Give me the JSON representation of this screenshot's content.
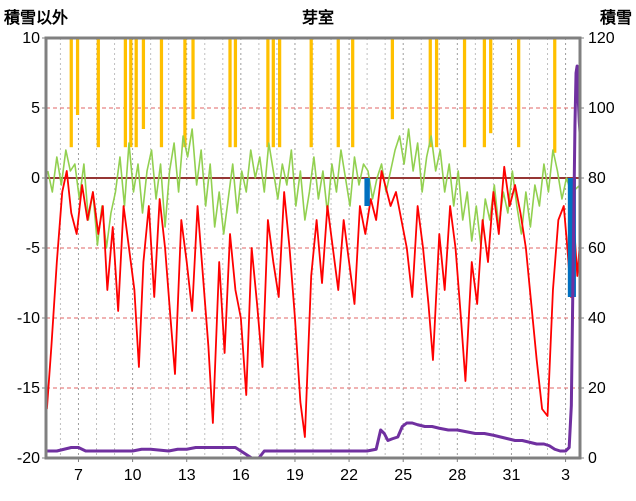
{
  "labels": {
    "left_axis_title": "積雪以外",
    "chart_title": "芽室",
    "right_axis_title": "積雪"
  },
  "chart_data": {
    "type": "line",
    "title": "芽室",
    "x_axis": {
      "domain": [
        5.2,
        34.8
      ],
      "gridline_step": 1,
      "ticks": [
        {
          "x": 7,
          "label": "7"
        },
        {
          "x": 10,
          "label": "10"
        },
        {
          "x": 13,
          "label": "13"
        },
        {
          "x": 16,
          "label": "16"
        },
        {
          "x": 19,
          "label": "19"
        },
        {
          "x": 22,
          "label": "22"
        },
        {
          "x": 25,
          "label": "25"
        },
        {
          "x": 28,
          "label": "28"
        },
        {
          "x": 31,
          "label": "31"
        },
        {
          "x": 34,
          "label": "3"
        }
      ]
    },
    "left_axis": {
      "title": "積雪以外",
      "range": [
        -20,
        10
      ],
      "ticks": [
        10,
        5,
        0,
        -5,
        -10,
        -15,
        -20
      ]
    },
    "right_axis": {
      "title": "積雪",
      "range": [
        0,
        120
      ],
      "ticks": [
        120,
        100,
        80,
        60,
        40,
        20,
        0
      ]
    },
    "colors": {
      "red": "#FF0000",
      "green": "#92D050",
      "orange": "#FFC000",
      "blue": "#0070C0",
      "purple": "#7030A0",
      "zero_line": "#963634",
      "h_grid": "#E06666",
      "v_grid": "#BFBFBF",
      "frame": "#808080"
    },
    "series": {
      "line_red": {
        "axis": "left",
        "color": "#FF0000",
        "points": [
          [
            5.25,
            -16.5
          ],
          [
            5.5,
            -12
          ],
          [
            5.8,
            -6
          ],
          [
            6.1,
            -1
          ],
          [
            6.35,
            0.5
          ],
          [
            6.6,
            -2.5
          ],
          [
            6.9,
            -4
          ],
          [
            7.2,
            -0.5
          ],
          [
            7.5,
            -3
          ],
          [
            7.8,
            -1
          ],
          [
            8.1,
            -4
          ],
          [
            8.35,
            -2
          ],
          [
            8.6,
            -8
          ],
          [
            8.9,
            -3.5
          ],
          [
            9.2,
            -9.5
          ],
          [
            9.5,
            -2
          ],
          [
            9.8,
            -5
          ],
          [
            10.1,
            -8
          ],
          [
            10.35,
            -13.5
          ],
          [
            10.6,
            -6
          ],
          [
            10.9,
            -2
          ],
          [
            11.2,
            -8.5
          ],
          [
            11.5,
            -1.5
          ],
          [
            11.8,
            -5
          ],
          [
            12.1,
            -10
          ],
          [
            12.35,
            -14
          ],
          [
            12.7,
            -3
          ],
          [
            13,
            -6
          ],
          [
            13.3,
            -9.5
          ],
          [
            13.6,
            -2
          ],
          [
            13.9,
            -7
          ],
          [
            14.2,
            -12
          ],
          [
            14.45,
            -17.5
          ],
          [
            14.8,
            -6
          ],
          [
            15.1,
            -12.5
          ],
          [
            15.4,
            -4
          ],
          [
            15.7,
            -8
          ],
          [
            16,
            -10
          ],
          [
            16.3,
            -15.5
          ],
          [
            16.6,
            -5
          ],
          [
            16.9,
            -9
          ],
          [
            17.2,
            -13.5
          ],
          [
            17.5,
            -3
          ],
          [
            17.8,
            -6
          ],
          [
            18.1,
            -8.5
          ],
          [
            18.4,
            -1
          ],
          [
            18.7,
            -5
          ],
          [
            19,
            -10
          ],
          [
            19.3,
            -16
          ],
          [
            19.55,
            -18.5
          ],
          [
            19.9,
            -7
          ],
          [
            20.2,
            -3
          ],
          [
            20.5,
            -7.5
          ],
          [
            20.8,
            -2
          ],
          [
            21.1,
            -5
          ],
          [
            21.4,
            -8
          ],
          [
            21.7,
            -3
          ],
          [
            22,
            -6
          ],
          [
            22.3,
            -9
          ],
          [
            22.6,
            -2
          ],
          [
            22.9,
            -4
          ],
          [
            23.2,
            -1.5
          ],
          [
            23.5,
            -3
          ],
          [
            23.8,
            0.5
          ],
          [
            24,
            -0.5
          ],
          [
            24.3,
            -2
          ],
          [
            24.6,
            -1
          ],
          [
            24.9,
            -3
          ],
          [
            25.2,
            -5
          ],
          [
            25.5,
            -8.5
          ],
          [
            25.8,
            -2
          ],
          [
            26.1,
            -5
          ],
          [
            26.4,
            -9
          ],
          [
            26.65,
            -13
          ],
          [
            27,
            -4
          ],
          [
            27.3,
            -8
          ],
          [
            27.6,
            -2
          ],
          [
            27.9,
            -5
          ],
          [
            28.2,
            -10
          ],
          [
            28.45,
            -14.5
          ],
          [
            28.8,
            -6
          ],
          [
            29.1,
            -9
          ],
          [
            29.4,
            -3
          ],
          [
            29.7,
            -6
          ],
          [
            30,
            -1
          ],
          [
            30.3,
            -4
          ],
          [
            30.6,
            0.8
          ],
          [
            30.9,
            -2
          ],
          [
            31.2,
            -0.5
          ],
          [
            31.5,
            -2.5
          ],
          [
            31.8,
            -5
          ],
          [
            32.1,
            -9
          ],
          [
            32.4,
            -13
          ],
          [
            32.7,
            -16.5
          ],
          [
            33,
            -17
          ],
          [
            33.3,
            -8
          ],
          [
            33.6,
            -3
          ],
          [
            33.9,
            -2
          ],
          [
            34.1,
            -5
          ],
          [
            34.3,
            -8.5
          ],
          [
            34.5,
            -4
          ],
          [
            34.65,
            -7
          ],
          [
            34.8,
            -4.5
          ]
        ]
      },
      "line_green": {
        "axis": "left",
        "color": "#92D050",
        "x0": 5.3,
        "dx": 0.25,
        "values": [
          0.5,
          -1,
          1.5,
          -0.5,
          2,
          0.5,
          1,
          -1.5,
          1,
          -3,
          -1,
          -4.8,
          -2,
          -5,
          -2.5,
          -1,
          1.5,
          -2,
          2.5,
          -1,
          1,
          -2.5,
          0.5,
          2,
          -1.5,
          1,
          -3.5,
          0.5,
          2.5,
          -1,
          3,
          1.5,
          3.5,
          -0.5,
          2,
          -2,
          1,
          -3.5,
          -1,
          -4,
          -1.5,
          1,
          -2.5,
          0.5,
          -1,
          2,
          0,
          1.5,
          -1,
          2.5,
          0.5,
          -1.5,
          1,
          -0.5,
          2,
          -2,
          0.5,
          -3,
          -1,
          1.5,
          -1.5,
          0.5,
          -2.5,
          1,
          -1,
          2,
          0,
          -2,
          1.5,
          -0.5,
          1,
          0.5,
          -1.5,
          0,
          1,
          -1,
          0.5,
          2,
          3,
          1,
          3.5,
          0.5,
          2.5,
          -1,
          1.5,
          3,
          0.5,
          2,
          -1,
          1,
          -2,
          0.5,
          -3,
          -1,
          -4.5,
          -2,
          -4.8,
          -1.5,
          -3,
          -0.5,
          -3.5,
          -1,
          -2.5,
          0.5,
          -2,
          -4,
          -1,
          -3.5,
          -0.5,
          -2,
          1,
          -1,
          2,
          0.5,
          -1.5,
          0,
          -1,
          -0.8,
          -0.5
        ]
      },
      "bars_orange_from_top": {
        "axis": "left",
        "color": "#FFC000",
        "top": 10,
        "width": 0.18,
        "bars": [
          {
            "x": 6.6,
            "bottom": 2.2
          },
          {
            "x": 6.95,
            "bottom": 4.5
          },
          {
            "x": 8.1,
            "bottom": 2.2
          },
          {
            "x": 9.6,
            "bottom": 2.2
          },
          {
            "x": 9.9,
            "bottom": 2.2
          },
          {
            "x": 10.2,
            "bottom": 2.2
          },
          {
            "x": 10.6,
            "bottom": 3.5
          },
          {
            "x": 11.6,
            "bottom": 2.2
          },
          {
            "x": 12.9,
            "bottom": 2.2
          },
          {
            "x": 13.35,
            "bottom": 4.2
          },
          {
            "x": 15.4,
            "bottom": 2.2
          },
          {
            "x": 15.7,
            "bottom": 2.2
          },
          {
            "x": 17.5,
            "bottom": 2.2
          },
          {
            "x": 17.8,
            "bottom": 2.2
          },
          {
            "x": 18.15,
            "bottom": 2.2
          },
          {
            "x": 19.9,
            "bottom": 2.2
          },
          {
            "x": 21.4,
            "bottom": 2.2
          },
          {
            "x": 22.2,
            "bottom": 2.2
          },
          {
            "x": 24.4,
            "bottom": 4.2
          },
          {
            "x": 26.5,
            "bottom": 2.2
          },
          {
            "x": 26.85,
            "bottom": 2.2
          },
          {
            "x": 28.4,
            "bottom": 2.2
          },
          {
            "x": 29.5,
            "bottom": 2.2
          },
          {
            "x": 29.85,
            "bottom": 3.2
          },
          {
            "x": 31.4,
            "bottom": 2.2
          },
          {
            "x": 33.4,
            "bottom": 1.8
          }
        ]
      },
      "bars_blue_below_zero": {
        "axis": "left",
        "color": "#0070C0",
        "bars": [
          {
            "x": 23.0,
            "width": 0.3,
            "from": 0,
            "to": -2
          },
          {
            "x": 34.35,
            "width": 0.45,
            "from": 0,
            "to": -8.5
          }
        ]
      },
      "line_purple": {
        "axis": "right",
        "color": "#7030A0",
        "points": [
          [
            5.25,
            2
          ],
          [
            5.8,
            2
          ],
          [
            6.2,
            2.5
          ],
          [
            6.6,
            3
          ],
          [
            7,
            3
          ],
          [
            7.4,
            2
          ],
          [
            8,
            2
          ],
          [
            9,
            2
          ],
          [
            10,
            2
          ],
          [
            10.5,
            2.5
          ],
          [
            11,
            2.5
          ],
          [
            12,
            2
          ],
          [
            12.5,
            2.5
          ],
          [
            13,
            2.5
          ],
          [
            13.5,
            3
          ],
          [
            14,
            3
          ],
          [
            15,
            3
          ],
          [
            15.7,
            3
          ],
          [
            16,
            2
          ],
          [
            16.3,
            1
          ],
          [
            16.6,
            0
          ],
          [
            17,
            0
          ],
          [
            17.3,
            2
          ],
          [
            18,
            2
          ],
          [
            19,
            2
          ],
          [
            20,
            2
          ],
          [
            21,
            2
          ],
          [
            22,
            2
          ],
          [
            23,
            2
          ],
          [
            23.5,
            2.5
          ],
          [
            23.75,
            8
          ],
          [
            23.95,
            7
          ],
          [
            24.15,
            5
          ],
          [
            24.4,
            5.5
          ],
          [
            24.7,
            6
          ],
          [
            24.95,
            9
          ],
          [
            25.2,
            10
          ],
          [
            25.5,
            10
          ],
          [
            25.8,
            9.5
          ],
          [
            26.2,
            9
          ],
          [
            26.6,
            9
          ],
          [
            27,
            8.5
          ],
          [
            27.5,
            8
          ],
          [
            28,
            8
          ],
          [
            28.5,
            7.5
          ],
          [
            29,
            7
          ],
          [
            29.5,
            7
          ],
          [
            30,
            6.5
          ],
          [
            30.4,
            6
          ],
          [
            30.8,
            5.5
          ],
          [
            31.2,
            5
          ],
          [
            31.6,
            5
          ],
          [
            32,
            4.5
          ],
          [
            32.4,
            4
          ],
          [
            32.8,
            4
          ],
          [
            33.1,
            3.5
          ],
          [
            33.4,
            2.5
          ],
          [
            33.7,
            2
          ],
          [
            34,
            2
          ],
          [
            34.2,
            3
          ],
          [
            34.32,
            15
          ],
          [
            34.42,
            55
          ],
          [
            34.52,
            95
          ],
          [
            34.58,
            110
          ],
          [
            34.64,
            112
          ],
          [
            34.7,
            103
          ],
          [
            34.76,
            96
          ],
          [
            34.8,
            93
          ]
        ]
      }
    }
  }
}
